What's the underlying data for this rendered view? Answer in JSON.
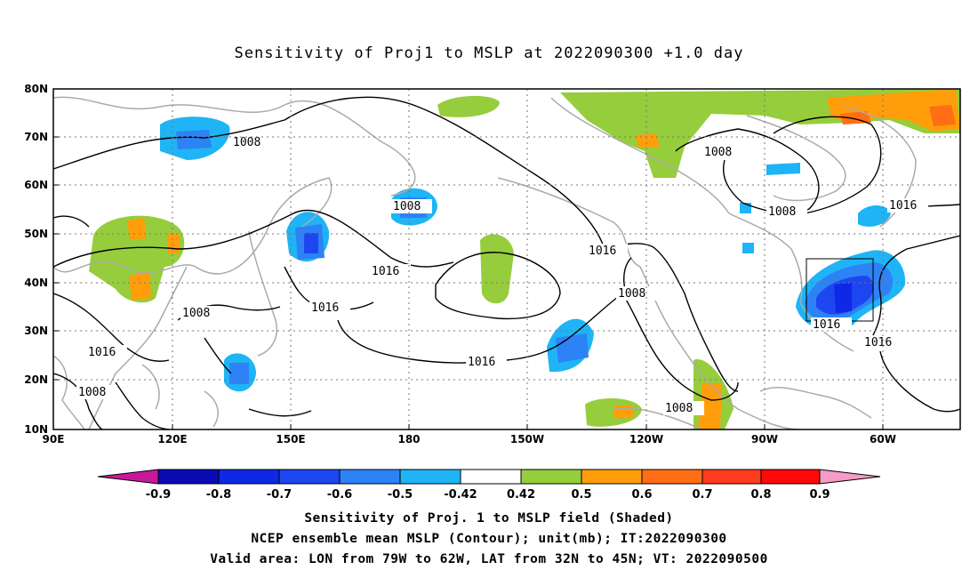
{
  "title": "Sensitivity of Proj1 to MSLP at 2022090300 +1.0 day",
  "x_axis": {
    "ticks": [
      "90E",
      "120E",
      "150E",
      "180",
      "150W",
      "120W",
      "90W",
      "60W"
    ]
  },
  "y_axis": {
    "ticks": [
      "80N",
      "70N",
      "60N",
      "50N",
      "40N",
      "30N",
      "20N",
      "10N"
    ]
  },
  "contour_labels": [
    "1008",
    "1008",
    "1008",
    "1008",
    "1016",
    "1008",
    "1016",
    "1016",
    "1016",
    "1008",
    "1016",
    "1008",
    "1016",
    "1016",
    "1008"
  ],
  "colorbar": {
    "colors": [
      "#c9199b",
      "#0a0ab4",
      "#0f28e6",
      "#1e46f0",
      "#2d82f5",
      "#1eb4f5",
      "#ffffff",
      "#96cd3c",
      "#ff9e0a",
      "#ff6e14",
      "#ff3c1e",
      "#ff0a0a",
      "#f59bc8"
    ],
    "ticks": [
      "-0.9",
      "-0.8",
      "-0.7",
      "-0.6",
      "-0.5",
      "-0.42",
      "0.42",
      "0.5",
      "0.6",
      "0.7",
      "0.8",
      "0.9"
    ]
  },
  "captions": [
    "Sensitivity of Proj. 1 to MSLP field (Shaded)",
    "NCEP ensemble mean MSLP (Contour); unit(mb); IT:2022090300",
    "Valid area: LON from 79W to 62W, LAT from 32N to 45N; VT: 2022090500"
  ]
}
